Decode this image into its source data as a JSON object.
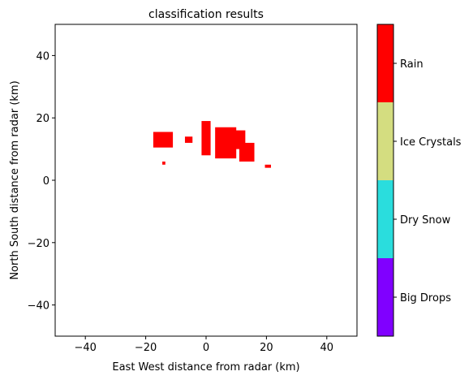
{
  "chart_data": {
    "type": "heatmap",
    "title": "classification results",
    "xlabel": "East West distance from radar (km)",
    "ylabel": "North South distance from radar (km)",
    "xlim": [
      -50,
      50
    ],
    "ylim": [
      -50,
      50
    ],
    "xticks": [
      -40,
      -20,
      0,
      20,
      40
    ],
    "yticks": [
      -40,
      -20,
      0,
      20,
      40
    ],
    "xtick_labels": [
      "−40",
      "−20",
      "0",
      "20",
      "40"
    ],
    "ytick_labels": [
      "−40",
      "−20",
      "0",
      "20",
      "40"
    ],
    "grid": false,
    "colorbar": {
      "position": "right",
      "categories": [
        {
          "label": "Big Drops",
          "color": "#8000ff"
        },
        {
          "label": "Dry Snow",
          "color": "#2adddd"
        },
        {
          "label": "Ice Crystals",
          "color": "#d4dd80"
        },
        {
          "label": "Rain",
          "color": "#ff0000"
        }
      ]
    },
    "classified_regions": [
      {
        "class": "Rain",
        "x": [
          -17.5,
          -11
        ],
        "y": [
          10.5,
          15.5
        ]
      },
      {
        "class": "Rain",
        "x": [
          -7,
          -4.5
        ],
        "y": [
          12,
          14
        ]
      },
      {
        "class": "Rain",
        "x": [
          -1.5,
          1.5
        ],
        "y": [
          8,
          19
        ]
      },
      {
        "class": "Rain",
        "x": [
          3,
          10
        ],
        "y": [
          7,
          17
        ]
      },
      {
        "class": "Rain",
        "x": [
          7,
          13
        ],
        "y": [
          10,
          16
        ]
      },
      {
        "class": "Rain",
        "x": [
          11,
          16
        ],
        "y": [
          6,
          12
        ]
      },
      {
        "class": "Rain",
        "x": [
          19.5,
          21.5
        ],
        "y": [
          4,
          5
        ]
      },
      {
        "class": "Rain",
        "x": [
          -14.5,
          -13.5
        ],
        "y": [
          5,
          6
        ]
      }
    ]
  }
}
